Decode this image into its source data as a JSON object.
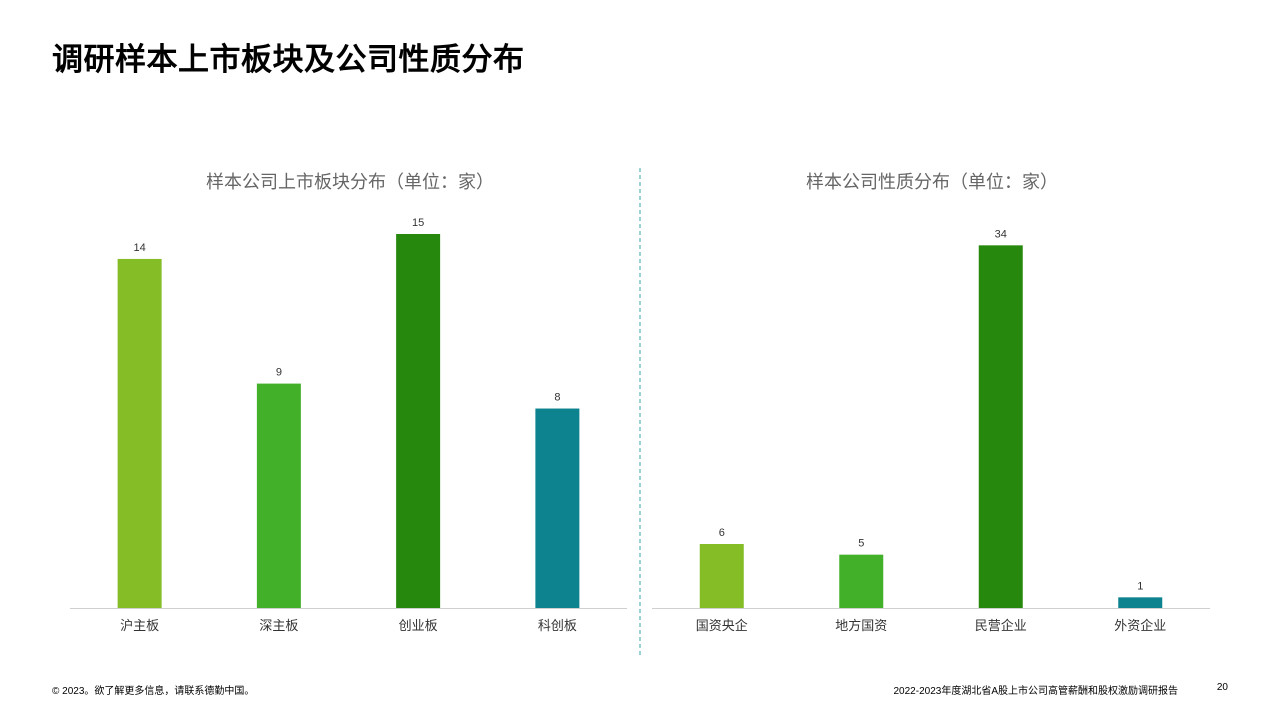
{
  "page": {
    "title": "调研样本上市板块及公司性质分布"
  },
  "chart_data": [
    {
      "type": "bar",
      "title": "样本公司上市板块分布（单位：家）",
      "categories": [
        "沪主板",
        "深主板",
        "创业板",
        "科创板"
      ],
      "values": [
        14,
        9,
        15,
        8
      ],
      "colors": [
        "#84bd26",
        "#43b02a",
        "#26890d",
        "#0d8390"
      ],
      "ylim": [
        0,
        15
      ],
      "grid": false,
      "xlabel": "",
      "ylabel": ""
    },
    {
      "type": "bar",
      "title": "样本公司性质分布（单位：家）",
      "categories": [
        "国资央企",
        "地方国资",
        "民营企业",
        "外资企业"
      ],
      "values": [
        6,
        5,
        34,
        1
      ],
      "colors": [
        "#84bd26",
        "#43b02a",
        "#26890d",
        "#0d8390"
      ],
      "ylim": [
        0,
        36
      ],
      "grid": false,
      "xlabel": "",
      "ylabel": ""
    }
  ],
  "footer": {
    "copyright": "© 2023。欲了解更多信息，请联系德勤中国。",
    "report_title": "2022-2023年度湖北省A股上市公司高管薪酬和股权激励调研报告",
    "page_number": "20"
  },
  "colors": {
    "axis": "#cfcfcf",
    "divider": "#5bb3b8",
    "label_text": "#333333",
    "title_text": "#666666"
  }
}
